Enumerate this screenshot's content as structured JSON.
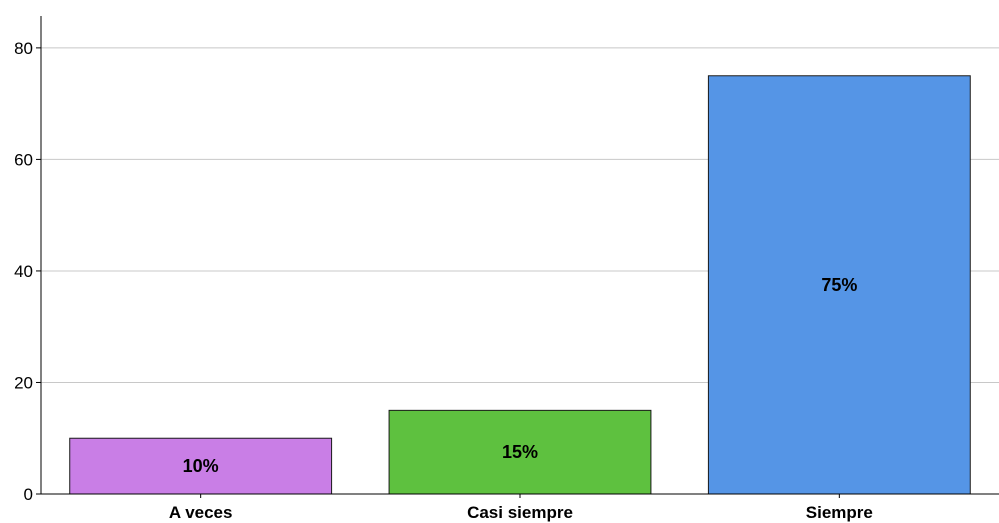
{
  "chart_data": {
    "type": "bar",
    "title": "",
    "xlabel": "",
    "ylabel": "",
    "categories": [
      "A veces",
      "Casi siempre",
      "Siempre"
    ],
    "values": [
      10,
      15,
      75
    ],
    "data_labels": [
      "10%",
      "15%",
      "75%"
    ],
    "colors": [
      "#c97ee6",
      "#5ec13f",
      "#5595e6"
    ],
    "ylim": [
      0,
      85
    ],
    "yticks": [
      0,
      20,
      40,
      60,
      80
    ],
    "grid": true,
    "legend": "none"
  }
}
